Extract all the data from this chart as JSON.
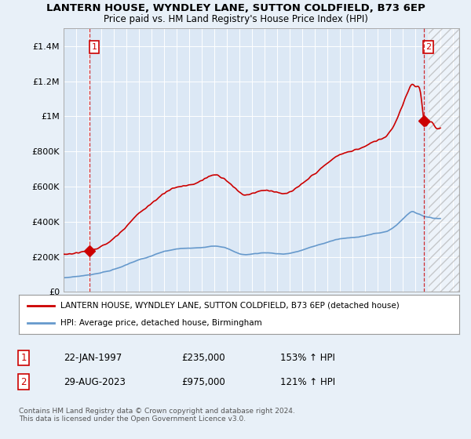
{
  "title": "LANTERN HOUSE, WYNDLEY LANE, SUTTON COLDFIELD, B73 6EP",
  "subtitle": "Price paid vs. HM Land Registry's House Price Index (HPI)",
  "legend_line1": "LANTERN HOUSE, WYNDLEY LANE, SUTTON COLDFIELD, B73 6EP (detached house)",
  "legend_line2": "HPI: Average price, detached house, Birmingham",
  "note": "Contains HM Land Registry data © Crown copyright and database right 2024.\nThis data is licensed under the Open Government Licence v3.0.",
  "sale1_label": "1",
  "sale1_date": "22-JAN-1997",
  "sale1_price": "£235,000",
  "sale1_hpi": "153% ↑ HPI",
  "sale2_label": "2",
  "sale2_date": "29-AUG-2023",
  "sale2_price": "£975,000",
  "sale2_hpi": "121% ↑ HPI",
  "house_color": "#cc0000",
  "hpi_color": "#6699cc",
  "background_color": "#e8f0f8",
  "plot_bg": "#dce8f5",
  "ylim": [
    0,
    1500000
  ],
  "xlim_start": 1995.0,
  "xlim_end": 2026.5,
  "hatch_start": 2024.08,
  "sale1_x": 1997.06,
  "sale1_y": 235000,
  "sale2_x": 2023.66,
  "sale2_y": 975000,
  "yticks": [
    0,
    200000,
    400000,
    600000,
    800000,
    1000000,
    1200000,
    1400000
  ],
  "ytick_labels": [
    "£0",
    "£200K",
    "£400K",
    "£600K",
    "£800K",
    "£1M",
    "£1.2M",
    "£1.4M"
  ],
  "xticks": [
    1995,
    1996,
    1997,
    1998,
    1999,
    2000,
    2001,
    2002,
    2003,
    2004,
    2005,
    2006,
    2007,
    2008,
    2009,
    2010,
    2011,
    2012,
    2013,
    2014,
    2015,
    2016,
    2017,
    2018,
    2019,
    2020,
    2021,
    2022,
    2023,
    2024,
    2025,
    2026
  ]
}
